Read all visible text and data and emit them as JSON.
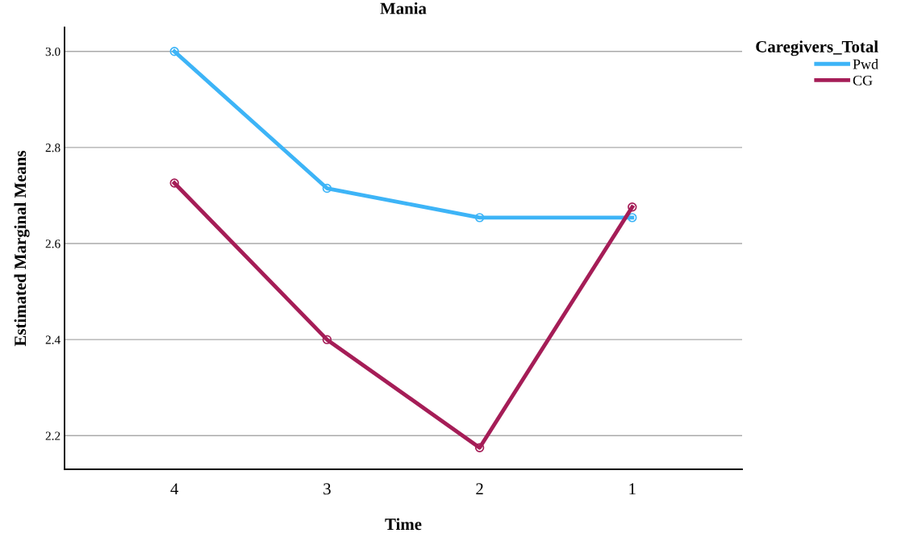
{
  "chart_data": {
    "type": "line",
    "title": "Mania",
    "xlabel": "Time",
    "ylabel": "Estimated Marginal Means",
    "legend_title": "Caregivers_Total",
    "categories": [
      "4",
      "3",
      "2",
      "1"
    ],
    "series": [
      {
        "name": "Pwd",
        "color": "#3db4f7",
        "values": [
          3.0,
          2.715,
          2.654,
          2.654
        ]
      },
      {
        "name": "CG",
        "color": "#a51d57",
        "values": [
          2.726,
          2.4,
          2.175,
          2.676
        ]
      }
    ],
    "ylim": [
      2.13,
      3.05
    ],
    "yticks": [
      {
        "value": 2.2,
        "label": "2.2"
      },
      {
        "value": 2.4,
        "label": "2.4"
      },
      {
        "value": 2.6,
        "label": "2.6"
      },
      {
        "value": 2.8,
        "label": "2.8"
      },
      {
        "value": 3.0,
        "label": "3.0"
      }
    ],
    "grid": "y",
    "legend": "top right",
    "marker": "circle",
    "line_style": "solid"
  }
}
